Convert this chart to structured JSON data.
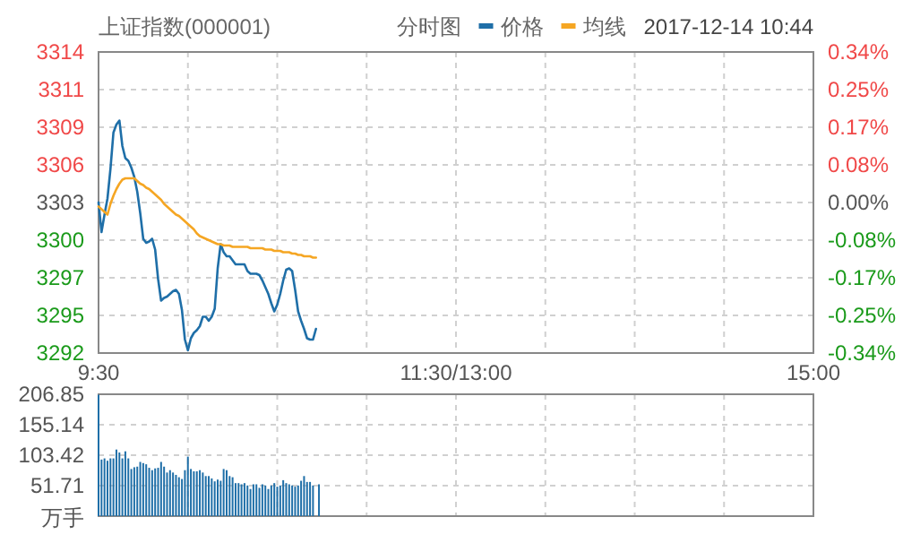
{
  "chart_data": [
    {
      "type": "line",
      "title": "上证指数(000001)",
      "legend_title": "分时图",
      "legend": "top right",
      "annotations": [
        "2017-12-14 10:44"
      ],
      "grid": true,
      "categories": [
        "9:30",
        null,
        null,
        null,
        null,
        null,
        null,
        null,
        null,
        null,
        null,
        null,
        null,
        null,
        null,
        null,
        null,
        null,
        null,
        null,
        null,
        null,
        null,
        null,
        null,
        null,
        null,
        null,
        null,
        null,
        null,
        null,
        null,
        null,
        null,
        null,
        null,
        null,
        null,
        null,
        null,
        null,
        null,
        null,
        null,
        null,
        null,
        null,
        null,
        null,
        null,
        null,
        null,
        null,
        null,
        null,
        null,
        null,
        null,
        null,
        null,
        null,
        null,
        null,
        null,
        null,
        null,
        null,
        null,
        null,
        null,
        null,
        null,
        null,
        null,
        null,
        null,
        null,
        null,
        null,
        null,
        null,
        null,
        null,
        null,
        null,
        null,
        null,
        null,
        null,
        null,
        null,
        null,
        null,
        null,
        null,
        null,
        null,
        null,
        null,
        null,
        null,
        null,
        null,
        null,
        null,
        null,
        null,
        null,
        null,
        null,
        null,
        null,
        null,
        null,
        null,
        null,
        null,
        null,
        null,
        "11:30/13:00",
        null,
        null,
        null,
        null,
        null,
        null,
        null,
        null,
        null,
        null,
        null,
        null,
        null,
        null,
        null,
        null,
        null,
        null,
        null,
        null,
        null,
        null,
        null,
        null,
        null,
        null,
        null,
        null,
        null,
        null,
        null,
        null,
        null,
        null,
        null,
        null,
        null,
        null,
        null,
        null,
        null,
        null,
        null,
        null,
        null,
        null,
        null,
        null,
        null,
        null,
        null,
        null,
        null,
        null,
        null,
        null,
        null,
        null,
        null,
        null,
        null,
        null,
        null,
        null,
        null,
        null,
        null,
        null,
        null,
        null,
        null,
        null,
        null,
        null,
        null,
        null,
        null,
        null,
        null,
        null,
        null,
        null,
        null,
        null,
        null,
        null,
        null,
        null,
        null,
        null,
        null,
        null,
        null,
        null,
        null,
        null,
        null,
        null,
        null,
        null,
        null,
        null,
        null,
        null,
        null,
        null,
        null,
        null,
        null,
        null,
        null,
        null,
        null,
        null,
        null,
        null,
        null,
        null,
        null,
        "15:00"
      ],
      "ylim": [
        3291.8,
        3314.2
      ],
      "yticks": [
        {
          "value": 3291.8,
          "label": "3292"
        },
        {
          "value": 3294.6,
          "label": "3295"
        },
        {
          "value": 3297.4,
          "label": "3297"
        },
        {
          "value": 3300.2,
          "label": "3300"
        },
        {
          "value": 3303,
          "label": "3303"
        },
        {
          "value": 3305.8,
          "label": "3306"
        },
        {
          "value": 3308.6,
          "label": "3309"
        },
        {
          "value": 3311.4,
          "label": "3311"
        },
        {
          "value": 3314.2,
          "label": "3314"
        }
      ],
      "y2lim": [
        -0.34,
        0.34
      ],
      "y2ticks": [
        {
          "value": -0.34,
          "label": "-0.34%"
        },
        {
          "value": -0.255,
          "label": "-0.25%"
        },
        {
          "value": -0.17,
          "label": "-0.17%"
        },
        {
          "value": -0.085,
          "label": "-0.08%"
        },
        {
          "value": 0,
          "label": "0.00%"
        },
        {
          "value": 0.085,
          "label": "0.08%"
        },
        {
          "value": 0.17,
          "label": "0.17%"
        },
        {
          "value": 0.255,
          "label": "0.25%"
        },
        {
          "value": 0.34,
          "label": "0.34%"
        }
      ],
      "series": [
        {
          "name": "价格",
          "color": "#1f6fa8",
          "values": [
            3303.0,
            3300.8,
            3302.1,
            3303.3,
            3305.5,
            3308.2,
            3308.8,
            3309.1,
            3307.2,
            3306.3,
            3306.1,
            3305.6,
            3304.9,
            3303.8,
            3302.2,
            3300.3,
            3300.0,
            3300.1,
            3300.3,
            3299.5,
            3297.3,
            3295.7,
            3295.9,
            3296.0,
            3296.2,
            3296.4,
            3296.5,
            3296.2,
            3295.0,
            3292.8,
            3292.0,
            3292.9,
            3293.3,
            3293.5,
            3293.8,
            3294.5,
            3294.5,
            3294.2,
            3294.5,
            3295.1,
            3298.1,
            3299.9,
            3299.3,
            3299.0,
            3299.0,
            3298.7,
            3298.4,
            3298.4,
            3298.4,
            3298.4,
            3297.9,
            3297.7,
            3297.7,
            3297.7,
            3297.6,
            3297.2,
            3296.7,
            3296.2,
            3295.5,
            3294.9,
            3295.4,
            3296.2,
            3297.2,
            3298.0,
            3298.1,
            3297.9,
            3296.5,
            3294.9,
            3294.2,
            3293.6,
            3292.9,
            3292.8,
            3292.8,
            3293.6,
            null,
            null,
            null,
            null,
            null,
            null,
            null,
            null,
            null,
            null,
            null,
            null,
            null,
            null,
            null,
            null,
            null,
            null,
            null,
            null,
            null,
            null,
            null,
            null,
            null,
            null,
            null,
            null,
            null,
            null,
            null,
            null,
            null,
            null,
            null,
            null,
            null,
            null,
            null,
            null,
            null,
            null,
            null,
            null,
            null,
            null,
            null,
            null,
            null,
            null,
            null,
            null,
            null,
            null,
            null,
            null,
            null,
            null,
            null,
            null,
            null,
            null,
            null,
            null,
            null,
            null,
            null,
            null,
            null,
            null,
            null,
            null,
            null,
            null,
            null,
            null,
            null,
            null,
            null,
            null,
            null,
            null,
            null,
            null,
            null,
            null,
            null,
            null,
            null,
            null,
            null,
            null,
            null,
            null,
            null,
            null,
            null,
            null,
            null,
            null,
            null,
            null,
            null,
            null,
            null,
            null,
            null,
            null,
            null,
            null,
            null,
            null,
            null,
            null,
            null,
            null,
            null,
            null,
            null,
            null,
            null,
            null,
            null,
            null,
            null,
            null,
            null,
            null,
            null,
            null,
            null,
            null,
            null,
            null,
            null,
            null,
            null,
            null,
            null,
            null,
            null,
            null,
            null,
            null,
            null,
            null,
            null,
            null,
            null,
            null,
            null,
            null,
            null,
            null,
            null,
            null,
            null,
            null,
            null,
            null,
            null,
            null,
            null,
            null,
            null,
            null,
            null
          ]
        },
        {
          "name": "均线",
          "color": "#f5a623",
          "values": [
            3302.7,
            3302.5,
            3302.3,
            3302.1,
            3302.9,
            3303.5,
            3304.0,
            3304.4,
            3304.7,
            3304.8,
            3304.8,
            3304.8,
            3304.8,
            3304.6,
            3304.4,
            3304.3,
            3304.1,
            3304.0,
            3303.8,
            3303.6,
            3303.4,
            3303.2,
            3302.9,
            3302.7,
            3302.5,
            3302.3,
            3302.1,
            3302.0,
            3301.8,
            3301.6,
            3301.4,
            3301.2,
            3301.0,
            3300.7,
            3300.5,
            3300.4,
            3300.3,
            3300.2,
            3300.1,
            3300.0,
            3299.9,
            3299.9,
            3299.8,
            3299.8,
            3299.8,
            3299.7,
            3299.7,
            3299.7,
            3299.7,
            3299.7,
            3299.7,
            3299.6,
            3299.6,
            3299.6,
            3299.6,
            3299.6,
            3299.5,
            3299.5,
            3299.5,
            3299.4,
            3299.4,
            3299.4,
            3299.3,
            3299.3,
            3299.3,
            3299.2,
            3299.2,
            3299.1,
            3299.1,
            3299.0,
            3299.0,
            3299.0,
            3298.9,
            3298.9,
            null,
            null,
            null,
            null,
            null,
            null,
            null,
            null,
            null,
            null,
            null,
            null,
            null,
            null,
            null,
            null,
            null,
            null,
            null,
            null,
            null,
            null,
            null,
            null,
            null,
            null,
            null,
            null,
            null,
            null,
            null,
            null,
            null,
            null,
            null,
            null,
            null,
            null,
            null,
            null,
            null,
            null,
            null,
            null,
            null,
            null,
            null,
            null,
            null,
            null,
            null,
            null,
            null,
            null,
            null,
            null,
            null,
            null,
            null,
            null,
            null,
            null,
            null,
            null,
            null,
            null,
            null,
            null,
            null,
            null,
            null,
            null,
            null,
            null,
            null,
            null,
            null,
            null,
            null,
            null,
            null,
            null,
            null,
            null,
            null,
            null,
            null,
            null,
            null,
            null,
            null,
            null,
            null,
            null,
            null,
            null,
            null,
            null,
            null,
            null,
            null,
            null,
            null,
            null,
            null,
            null,
            null,
            null,
            null,
            null,
            null,
            null,
            null,
            null,
            null,
            null,
            null,
            null,
            null,
            null,
            null,
            null,
            null,
            null,
            null,
            null,
            null,
            null,
            null,
            null,
            null,
            null,
            null,
            null,
            null,
            null,
            null,
            null,
            null,
            null,
            null,
            null,
            null,
            null,
            null,
            null,
            null,
            null,
            null,
            null,
            null,
            null,
            null,
            null,
            null,
            null,
            null,
            null,
            null,
            null,
            null,
            null,
            null,
            null,
            null,
            null,
            null
          ]
        }
      ]
    },
    {
      "type": "bar",
      "ylabel": "万手",
      "grid": true,
      "tick_labels": "y",
      "color": "#1f6fa8",
      "categories": [
        null,
        null,
        null,
        null,
        null,
        null,
        null,
        null,
        null,
        null,
        null,
        null,
        null,
        null,
        null,
        null,
        null,
        null,
        null,
        null,
        null,
        null,
        null,
        null,
        null,
        null,
        null,
        null,
        null,
        null,
        null,
        null,
        null,
        null,
        null,
        null,
        null,
        null,
        null,
        null,
        null,
        null,
        null,
        null,
        null,
        null,
        null,
        null,
        null,
        null,
        null,
        null,
        null,
        null,
        null,
        null,
        null,
        null,
        null,
        null,
        null,
        null,
        null,
        null,
        null,
        null,
        null,
        null,
        null,
        null,
        null,
        null,
        null,
        null,
        null,
        null,
        null,
        null,
        null,
        null,
        null,
        null,
        null,
        null,
        null,
        null,
        null,
        null,
        null,
        null,
        null,
        null,
        null,
        null,
        null,
        null,
        null,
        null,
        null,
        null,
        null,
        null,
        null,
        null,
        null,
        null,
        null,
        null,
        null,
        null,
        null,
        null,
        null,
        null,
        null,
        null,
        null,
        null,
        null,
        null,
        null,
        null,
        null,
        null,
        null,
        null,
        null,
        null,
        null,
        null,
        null,
        null,
        null,
        null,
        null,
        null,
        null,
        null,
        null,
        null,
        null,
        null,
        null,
        null,
        null,
        null,
        null,
        null,
        null,
        null,
        null,
        null,
        null,
        null,
        null,
        null,
        null,
        null,
        null,
        null,
        null,
        null,
        null,
        null,
        null,
        null,
        null,
        null,
        null,
        null,
        null,
        null,
        null,
        null,
        null,
        null,
        null,
        null,
        null,
        null,
        null,
        null,
        null,
        null,
        null,
        null,
        null,
        null,
        null,
        null,
        null,
        null,
        null,
        null,
        null,
        null,
        null,
        null,
        null,
        null,
        null,
        null,
        null,
        null,
        null,
        null,
        null,
        null,
        null,
        null,
        null,
        null,
        null,
        null,
        null,
        null,
        null,
        null,
        null,
        null,
        null,
        null,
        null,
        null,
        null,
        null,
        null,
        null,
        null,
        null,
        null,
        null,
        null,
        null,
        null,
        null,
        null,
        null,
        null,
        null,
        null
      ],
      "ylim": [
        0,
        206.85
      ],
      "yticks": [
        51.71,
        103.42,
        155.14,
        206.85
      ],
      "values": [
        206,
        96,
        98,
        94,
        98,
        98,
        113,
        108,
        98,
        110,
        98,
        80,
        83,
        84,
        92,
        90,
        88,
        82,
        78,
        81,
        82,
        92,
        84,
        74,
        78,
        74,
        70,
        66,
        63,
        78,
        101,
        80,
        76,
        76,
        78,
        74,
        68,
        68,
        64,
        59,
        62,
        60,
        80,
        78,
        68,
        66,
        56,
        56,
        54,
        56,
        52,
        46,
        54,
        54,
        48,
        54,
        52,
        46,
        52,
        56,
        50,
        52,
        61,
        56,
        54,
        52,
        50,
        52,
        60,
        68,
        58,
        58,
        52,
        null,
        54,
        null,
        null,
        null,
        null,
        null,
        null,
        null,
        null,
        null,
        null,
        null,
        null,
        null,
        null,
        null,
        null,
        null,
        null,
        null,
        null,
        null,
        null,
        null,
        null,
        null,
        null,
        null,
        null,
        null,
        null,
        null,
        null,
        null,
        null,
        null,
        null,
        null,
        null,
        null,
        null,
        null,
        null,
        null,
        null,
        null,
        null,
        null,
        null,
        null,
        null,
        null,
        null,
        null,
        null,
        null,
        null,
        null,
        null,
        null,
        null,
        null,
        null,
        null,
        null,
        null,
        null,
        null,
        null,
        null,
        null,
        null,
        null,
        null,
        null,
        null,
        null,
        null,
        null,
        null,
        null,
        null,
        null,
        null,
        null,
        null,
        null,
        null,
        null,
        null,
        null,
        null,
        null,
        null,
        null,
        null,
        null,
        null,
        null,
        null,
        null,
        null,
        null,
        null,
        null,
        null,
        null,
        null,
        null,
        null,
        null,
        null,
        null,
        null,
        null,
        null,
        null,
        null,
        null,
        null,
        null,
        null,
        null,
        null,
        null,
        null,
        null,
        null,
        null,
        null,
        null,
        null,
        null,
        null,
        null,
        null,
        null,
        null,
        null,
        null,
        null,
        null,
        null,
        null,
        null,
        null,
        null,
        null,
        null,
        null,
        null,
        null,
        null,
        null,
        null,
        null,
        null,
        null,
        null,
        null,
        null,
        null,
        null,
        null,
        null,
        null,
        null
      ]
    }
  ]
}
